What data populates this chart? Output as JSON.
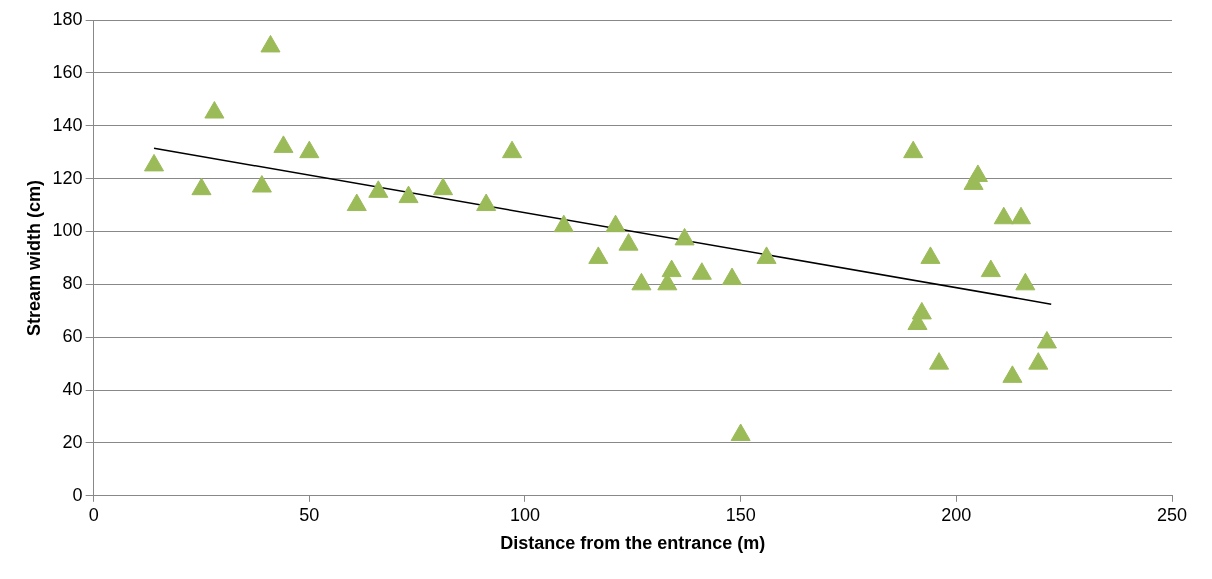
{
  "chart_data": {
    "type": "scatter",
    "xlabel": "Distance from the entrance (m)",
    "ylabel": "Stream width (cm)",
    "xlim": [
      0,
      250
    ],
    "xticks": [
      0,
      50,
      100,
      150,
      200,
      250
    ],
    "ylim": [
      0,
      180
    ],
    "yticks": [
      0,
      20,
      40,
      60,
      80,
      100,
      120,
      140,
      160,
      180
    ],
    "grid": "y",
    "legend": false,
    "marker": "triangle",
    "series": [
      {
        "color": "#9bbb59",
        "x": [
          14,
          25,
          28,
          39,
          41,
          44,
          50,
          61,
          66,
          73,
          81,
          91,
          97,
          109,
          117,
          121,
          124,
          127,
          133,
          134,
          137,
          141,
          148,
          150,
          156,
          190,
          191,
          192,
          194,
          196,
          204,
          205,
          208,
          211,
          213,
          215,
          216,
          219,
          221
        ],
        "values": [
          125,
          116,
          145,
          117,
          170,
          132,
          130,
          110,
          115,
          113,
          116,
          110,
          130,
          102,
          90,
          102,
          95,
          80,
          80,
          85,
          97,
          84,
          82,
          23,
          90,
          130,
          65,
          69,
          90,
          50,
          118,
          121,
          85,
          105,
          45,
          105,
          80,
          50,
          58
        ]
      },
      {
        "type": "line",
        "color": "#000000",
        "marker": "none",
        "x": [
          14,
          222
        ],
        "values": [
          131.5,
          72.5
        ]
      }
    ]
  }
}
